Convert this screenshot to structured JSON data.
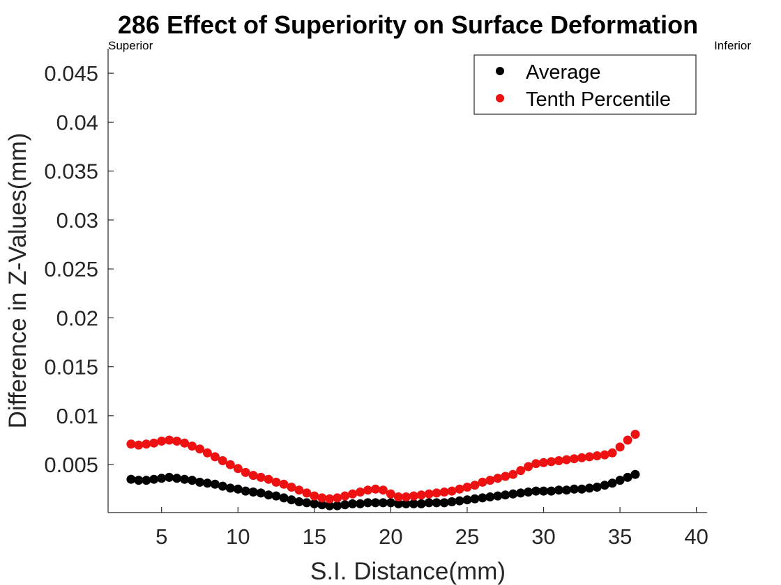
{
  "chart_data": {
    "type": "scatter",
    "title": "286  Effect of Superiority on Surface Deformation",
    "annotations": {
      "left": "Superior",
      "right": "Inferior"
    },
    "xlabel": "S.I. Distance(mm)",
    "ylabel": "Difference in Z-Values(mm)",
    "xlim": [
      1.5,
      40.7
    ],
    "ylim": [
      0.0001,
      0.0475
    ],
    "xticks": [
      5,
      10,
      15,
      20,
      25,
      30,
      35,
      40
    ],
    "xtick_labels": [
      "5",
      "10",
      "15",
      "20",
      "25",
      "30",
      "35",
      "40"
    ],
    "yticks": [
      0.005,
      0.01,
      0.015,
      0.02,
      0.025,
      0.03,
      0.035,
      0.04,
      0.045
    ],
    "ytick_labels": [
      "0.005",
      "0.01",
      "0.015",
      "0.02",
      "0.025",
      "0.03",
      "0.035",
      "0.04",
      "0.045"
    ],
    "grid": false,
    "legend_position": "top-right",
    "x": [
      3.0,
      3.5,
      4.0,
      4.5,
      5.0,
      5.5,
      6.0,
      6.5,
      7.0,
      7.5,
      8.0,
      8.5,
      9.0,
      9.5,
      10.0,
      10.5,
      11.0,
      11.5,
      12.0,
      12.5,
      13.0,
      13.5,
      14.0,
      14.5,
      15.0,
      15.5,
      16.0,
      16.5,
      17.0,
      17.5,
      18.0,
      18.5,
      19.0,
      19.5,
      20.0,
      20.5,
      21.0,
      21.5,
      22.0,
      22.5,
      23.0,
      23.5,
      24.0,
      24.5,
      25.0,
      25.5,
      26.0,
      26.5,
      27.0,
      27.5,
      28.0,
      28.5,
      29.0,
      29.5,
      30.0,
      30.5,
      31.0,
      31.5,
      32.0,
      32.5,
      33.0,
      33.5,
      34.0,
      34.5,
      35.0,
      35.5,
      36.0
    ],
    "series": [
      {
        "name": "Average",
        "color": "#000000",
        "values": [
          0.0035,
          0.0034,
          0.0034,
          0.0035,
          0.0036,
          0.0037,
          0.0036,
          0.0035,
          0.0034,
          0.0032,
          0.0031,
          0.003,
          0.0028,
          0.0026,
          0.0025,
          0.0023,
          0.0022,
          0.0021,
          0.0019,
          0.0018,
          0.0016,
          0.0014,
          0.0012,
          0.0011,
          0.001,
          0.0009,
          0.0008,
          0.0008,
          0.0009,
          0.001,
          0.001,
          0.0011,
          0.0011,
          0.0011,
          0.0011,
          0.001,
          0.001,
          0.001,
          0.001,
          0.0011,
          0.0011,
          0.0011,
          0.0012,
          0.0013,
          0.0014,
          0.0015,
          0.0016,
          0.0017,
          0.0018,
          0.0019,
          0.002,
          0.0021,
          0.0022,
          0.0023,
          0.0023,
          0.0023,
          0.0024,
          0.0024,
          0.0025,
          0.0025,
          0.0026,
          0.0027,
          0.0029,
          0.0031,
          0.0034,
          0.0037,
          0.004
        ]
      },
      {
        "name": "Tenth Percentile",
        "color": "#ee1111",
        "values": [
          0.0071,
          0.007,
          0.0071,
          0.0072,
          0.0074,
          0.0075,
          0.0074,
          0.0072,
          0.0069,
          0.0066,
          0.0062,
          0.0058,
          0.0054,
          0.005,
          0.0046,
          0.0042,
          0.0039,
          0.0037,
          0.0035,
          0.0032,
          0.003,
          0.0027,
          0.0024,
          0.0021,
          0.0018,
          0.0016,
          0.0015,
          0.0016,
          0.0018,
          0.002,
          0.0022,
          0.0024,
          0.0025,
          0.0024,
          0.002,
          0.0017,
          0.0017,
          0.0018,
          0.0019,
          0.002,
          0.0021,
          0.0022,
          0.0023,
          0.0025,
          0.0027,
          0.0029,
          0.0032,
          0.0034,
          0.0036,
          0.0038,
          0.004,
          0.0044,
          0.0048,
          0.0051,
          0.0052,
          0.0053,
          0.0054,
          0.0055,
          0.0056,
          0.0057,
          0.0058,
          0.0059,
          0.006,
          0.0062,
          0.0068,
          0.0075,
          0.0081
        ]
      }
    ]
  }
}
